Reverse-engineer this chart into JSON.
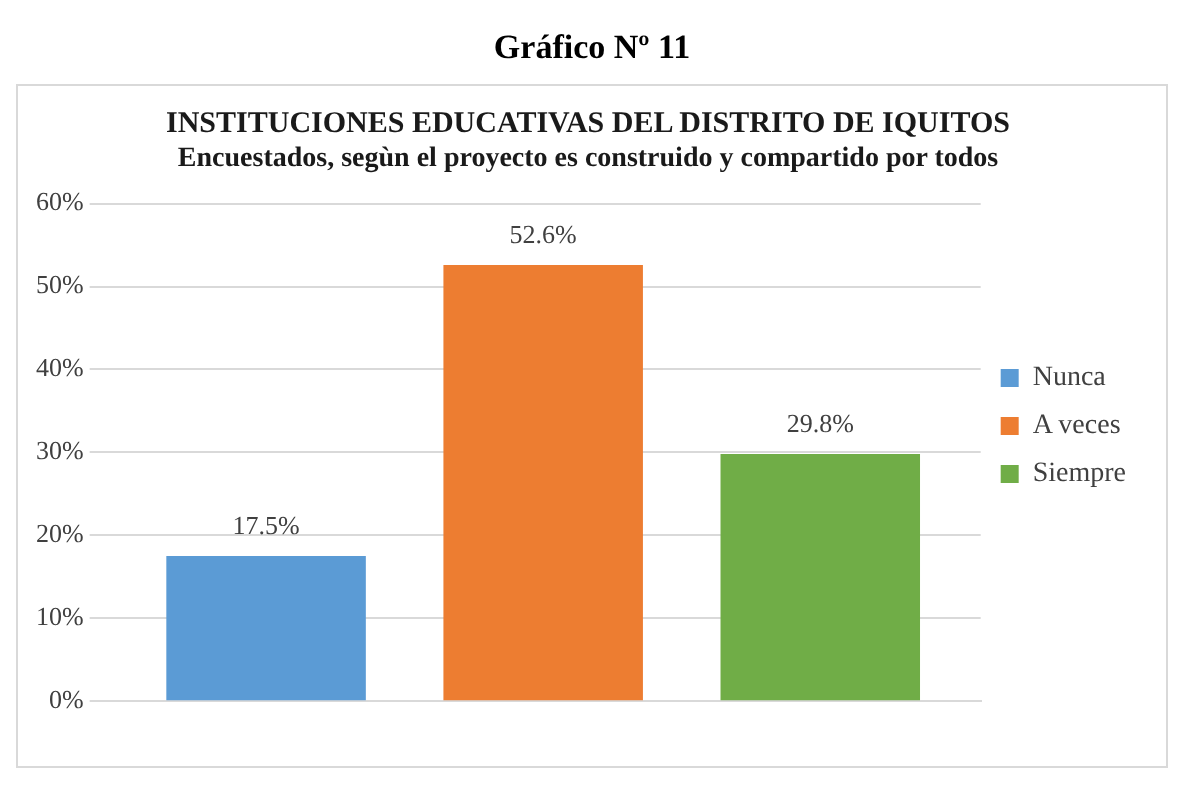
{
  "chart_data": {
    "type": "bar",
    "title": "INSTITUCIONES EDUCATIVAS DEL DISTRITO DE IQUITOS",
    "subtitle": "Encuestados, segùn el proyecto es construido y compartido por todos",
    "annotations": [
      "Gráfico Nº 11"
    ],
    "categories": [
      null
    ],
    "series": [
      {
        "name": "Nunca",
        "color": "#5b9bd5",
        "values": [
          17.5
        ],
        "value_labels": [
          "17.5%"
        ]
      },
      {
        "name": "A veces",
        "color": "#ed7d31",
        "values": [
          52.6
        ],
        "value_labels": [
          "52.6%"
        ]
      },
      {
        "name": "Siempre",
        "color": "#70ad47",
        "values": [
          29.8
        ],
        "value_labels": [
          "29.8%"
        ]
      }
    ],
    "ylim": [
      0,
      60
    ],
    "yticks": [
      {
        "value": 0,
        "label": "0%"
      },
      {
        "value": 10,
        "label": "10%"
      },
      {
        "value": 20,
        "label": "20%"
      },
      {
        "value": 30,
        "label": "30%"
      },
      {
        "value": 40,
        "label": "40%"
      },
      {
        "value": 50,
        "label": "50%"
      },
      {
        "value": 60,
        "label": "60%"
      }
    ],
    "grid": "y",
    "legend": "right"
  }
}
